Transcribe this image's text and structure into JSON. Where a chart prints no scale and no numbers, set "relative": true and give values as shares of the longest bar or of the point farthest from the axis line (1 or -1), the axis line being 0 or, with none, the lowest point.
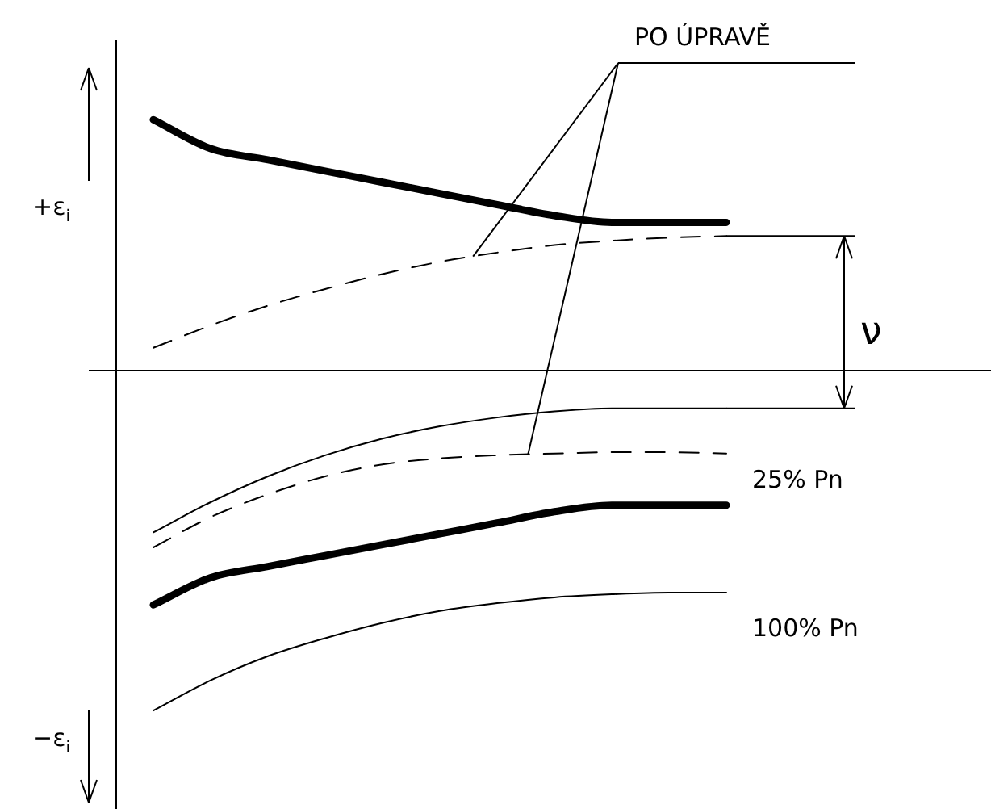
{
  "chart_data": {
    "type": "line",
    "relative": true,
    "categories": [
      null,
      null,
      null,
      null,
      null,
      null,
      null,
      null,
      null,
      null,
      null
    ],
    "series": [
      {
        "color": "#000000",
        "values": [
          0.738,
          0.653,
          0.62,
          0.587,
          0.554,
          0.521,
          0.488,
          0.456,
          0.436,
          0.436,
          0.436
        ]
      },
      {
        "color": "#000000",
        "line_style": "dashed",
        "values": [
          0.067,
          0.133,
          0.191,
          0.24,
          0.284,
          0.32,
          0.347,
          0.369,
          0.382,
          0.391,
          0.396
        ]
      },
      {
        "color": "#000000",
        "values": [
          -0.476,
          -0.387,
          -0.311,
          -0.249,
          -0.2,
          -0.164,
          -0.138,
          -0.12,
          -0.111,
          -0.111,
          -0.111
        ]
      },
      {
        "color": "#000000",
        "line_style": "dashed",
        "values": [
          -0.52,
          -0.431,
          -0.364,
          -0.311,
          -0.276,
          -0.258,
          -0.249,
          -0.244,
          -0.24,
          -0.24,
          -0.244
        ]
      },
      {
        "color": "#000000",
        "values": [
          -0.689,
          -0.609,
          -0.576,
          -0.544,
          -0.512,
          -0.48,
          -0.448,
          -0.415,
          -0.396,
          -0.396,
          -0.396
        ]
      },
      {
        "color": "#000000",
        "values": [
          -1,
          -0.911,
          -0.84,
          -0.787,
          -0.742,
          -0.707,
          -0.684,
          -0.667,
          -0.658,
          -0.653,
          -0.653
        ]
      }
    ],
    "annotations": [
      "PO ÚPRAVĚ",
      "+ε$_{i}$",
      "−ε$_{i}$",
      "ν",
      "25% Pn",
      "100% Pn"
    ],
    "marker": "none",
    "legend": false
  }
}
